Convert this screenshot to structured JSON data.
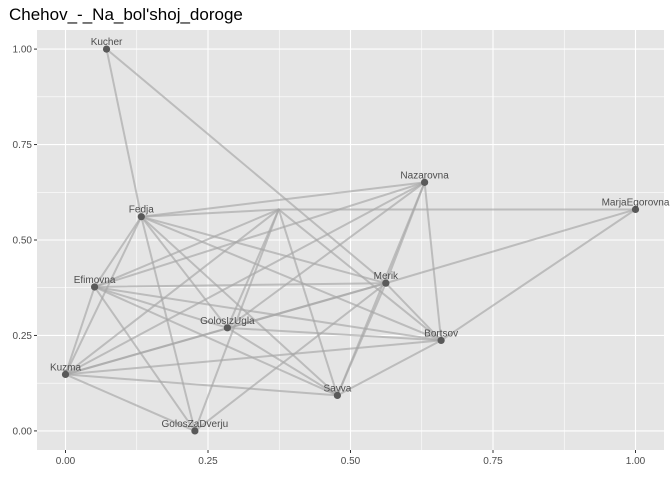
{
  "chart_data": {
    "type": "scatter",
    "title": "Chehov_-_Na_bol'shoj_doroge",
    "xlabel": "",
    "ylabel": "",
    "xlim": [
      -0.05,
      1.05
    ],
    "ylim": [
      -0.05,
      1.05
    ],
    "x_ticks": [
      0.0,
      0.25,
      0.5,
      0.75,
      1.0
    ],
    "x_tick_labels": [
      "0.00",
      "0.25",
      "0.50",
      "0.75",
      "1.00"
    ],
    "y_ticks": [
      0.0,
      0.25,
      0.5,
      0.75,
      1.0
    ],
    "y_tick_labels": [
      "0.00",
      "0.25",
      "0.50",
      "0.75",
      "1.00"
    ],
    "grid": true,
    "panel_background": "#e5e5e5",
    "grid_color": "#ffffff",
    "point_color": "#595959",
    "edge_color": "#a6a6a6",
    "nodes": [
      {
        "name": "Kucher",
        "x": 0.072,
        "y": 1.0
      },
      {
        "name": "Nazarovna",
        "x": 0.63,
        "y": 0.651
      },
      {
        "name": "MarjaEgorovna",
        "x": 1.0,
        "y": 0.58
      },
      {
        "name": "Fedja",
        "x": 0.133,
        "y": 0.561
      },
      {
        "name": "Efimovna",
        "x": 0.051,
        "y": 0.377
      },
      {
        "name": "Merik",
        "x": 0.562,
        "y": 0.387
      },
      {
        "name": "GolosIzUgla",
        "x": 0.284,
        "y": 0.27
      },
      {
        "name": "Bortsov",
        "x": 0.659,
        "y": 0.237
      },
      {
        "name": "Kuzma",
        "x": 0.0,
        "y": 0.148
      },
      {
        "name": "Savva",
        "x": 0.477,
        "y": 0.093
      },
      {
        "name": "GolosZaDverju",
        "x": 0.227,
        "y": 0.0
      },
      {
        "name": "",
        "x": 0.374,
        "y": 0.58
      }
    ],
    "edges": [
      {
        "source": "Kucher",
        "target": "Fedja",
        "weight": 1
      },
      {
        "source": "Kucher",
        "target": "Merik",
        "weight": 1
      },
      {
        "source": "Fedja",
        "target": "Nazarovna",
        "weight": 1
      },
      {
        "source": "Fedja",
        "target": "Merik",
        "weight": 1
      },
      {
        "source": "Fedja",
        "target": "Bortsov",
        "weight": 1
      },
      {
        "source": "Fedja",
        "target": "Savva",
        "weight": 1
      },
      {
        "source": "Fedja",
        "target": "GolosIzUgla",
        "weight": 1
      },
      {
        "source": "Fedja",
        "target": "GolosZaDverju",
        "weight": 1
      },
      {
        "source": "Fedja",
        "target": "Kuzma",
        "weight": 1
      },
      {
        "source": "Fedja",
        "target": "Efimovna",
        "weight": 1
      },
      {
        "source": "Nazarovna",
        "target": "Efimovna",
        "weight": 1
      },
      {
        "source": "Nazarovna",
        "target": "GolosIzUgla",
        "weight": 1
      },
      {
        "source": "Nazarovna",
        "target": "Merik",
        "weight": 1
      },
      {
        "source": "Nazarovna",
        "target": "Bortsov",
        "weight": 1
      },
      {
        "source": "Nazarovna",
        "target": "Savva",
        "weight": 1
      },
      {
        "source": "Nazarovna",
        "target": "Kuzma",
        "weight": 1
      },
      {
        "source": "Efimovna",
        "target": "Merik",
        "weight": 1
      },
      {
        "source": "Efimovna",
        "target": "Bortsov",
        "weight": 1
      },
      {
        "source": "Efimovna",
        "target": "GolosZaDverju",
        "weight": 1
      },
      {
        "source": "Efimovna",
        "target": "Savva",
        "weight": 1
      },
      {
        "source": "Efimovna",
        "target": "GolosIzUgla",
        "weight": 1
      },
      {
        "source": "Efimovna",
        "target": "Kuzma",
        "weight": 1
      },
      {
        "source": "Merik",
        "target": "Kuzma",
        "weight": 2
      },
      {
        "source": "Merik",
        "target": "Savva",
        "weight": 1
      },
      {
        "source": "Merik",
        "target": "GolosZaDverju",
        "weight": 1
      },
      {
        "source": "Merik",
        "target": "Bortsov",
        "weight": 1
      },
      {
        "source": "Merik",
        "target": "MarjaEgorovna",
        "weight": 1
      },
      {
        "source": "GolosIzUgla",
        "target": "Bortsov",
        "weight": 1
      },
      {
        "source": "GolosIzUgla",
        "target": "Savva",
        "weight": 1
      },
      {
        "source": "Kuzma",
        "target": "Bortsov",
        "weight": 1
      },
      {
        "source": "Kuzma",
        "target": "Savva",
        "weight": 1
      },
      {
        "source": "Kuzma",
        "target": "GolosZaDverju",
        "weight": 1
      },
      {
        "source": "Savva",
        "target": "Bortsov",
        "weight": 1
      },
      {
        "source": "Bortsov",
        "target": "MarjaEgorovna",
        "weight": 1
      },
      {
        "source": "",
        "target": "MarjaEgorovna",
        "weight": 1
      },
      {
        "source": "",
        "target": "Efimovna",
        "weight": 1
      },
      {
        "source": "",
        "target": "Fedja",
        "weight": 1
      },
      {
        "source": "",
        "target": "Kuzma",
        "weight": 1
      },
      {
        "source": "",
        "target": "GolosIzUgla",
        "weight": 1
      },
      {
        "source": "",
        "target": "GolosZaDverju",
        "weight": 1
      },
      {
        "source": "",
        "target": "Savva",
        "weight": 1
      },
      {
        "source": "",
        "target": "Bortsov",
        "weight": 1
      }
    ]
  }
}
